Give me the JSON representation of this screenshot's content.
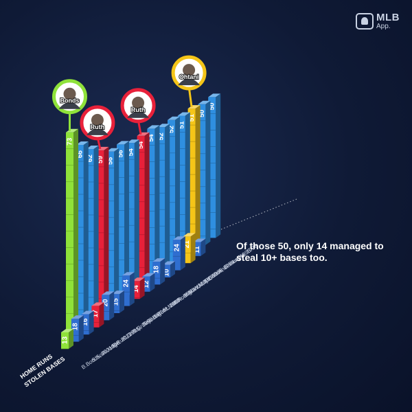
{
  "logo": {
    "name": "MLB",
    "sub": "App."
  },
  "callout": "Of those 50, only 14 managed to steal 10+ bases too.",
  "chart_data": {
    "type": "bar",
    "title": "",
    "legend": [
      "HOME RUNS",
      "STOLEN BASES"
    ],
    "categories": [
      "B.Bonds, 2001",
      "S.Sosa, 1998",
      "A.Judge, 2022",
      "B.Ruth, 1921",
      "K.Griffey, 1998",
      "K.Griffey, 1997",
      "A.Rodriguez, 2007",
      "B.Ruth, 1920",
      "M.Mantle, 1961",
      "A.Rodriguez, 2001",
      "M.Mantle, 1956",
      "W.Mays, 1955",
      "S.Ohtani, 2024",
      "B.Anderson, 1996",
      "G.Vaughn, 1998"
    ],
    "series": [
      {
        "name": "HOME RUNS",
        "values": [
          73,
          66,
          62,
          59,
          56,
          56,
          54,
          54,
          54,
          52,
          52,
          51,
          51,
          50,
          50
        ]
      },
      {
        "name": "STOLEN BASES",
        "values": [
          13,
          18,
          16,
          17,
          20,
          15,
          24,
          14,
          12,
          18,
          10,
          24,
          21,
          11,
          null
        ]
      }
    ],
    "highlights": [
      {
        "label": "Bonds",
        "category": "B.Bonds, 2001",
        "color": "#8fe23a"
      },
      {
        "label": "Ruth",
        "category": "B.Ruth, 1921",
        "color": "#e8213a"
      },
      {
        "label": "Ruth",
        "category": "B.Ruth, 1920",
        "color": "#e8213a"
      },
      {
        "label": "Ohtani",
        "category": "S.Ohtani, 2024",
        "color": "#f5c518"
      }
    ],
    "colors": {
      "hr": "#2f8fe0",
      "sb": "#2f6ed0",
      "bonds": "#8fe23a",
      "ruth": "#e8213a",
      "ohtani": "#f5c518"
    }
  }
}
